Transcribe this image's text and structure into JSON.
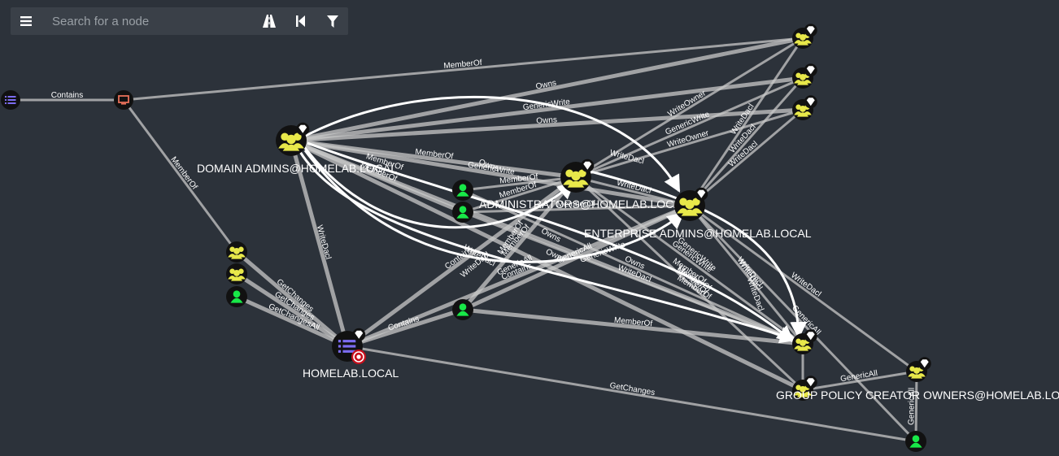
{
  "search": {
    "placeholder": "Search for a node"
  },
  "toolbar": {
    "menu_icon": "hamburger-menu-icon",
    "pathfinding_icon": "road-icon",
    "back_icon": "step-back-icon",
    "filter_icon": "filter-icon"
  },
  "colors": {
    "background": "#2c323a",
    "group": "#e8e84a",
    "user": "#18e848",
    "domain": "#7c6cf0",
    "computer": "#e8705a",
    "edge": "#c8c8c8",
    "target_badge": "#c80f1c"
  },
  "nodes": [
    {
      "id": "ou",
      "type": "ou",
      "icon": "list-icon",
      "label": ""
    },
    {
      "id": "comp",
      "type": "computer",
      "icon": "computer-icon",
      "label": ""
    },
    {
      "id": "domain-admins",
      "type": "group",
      "icon": "group-icon",
      "label": "DOMAIN ADMINS@HOMELAB.LOCAL",
      "highvalue": true,
      "big": true
    },
    {
      "id": "administrators",
      "type": "group",
      "icon": "group-icon",
      "label": "ADMINISTRATORS@HOMELAB.LOCAL",
      "highvalue": true,
      "big": true
    },
    {
      "id": "enterprise-admins",
      "type": "group",
      "icon": "group-icon",
      "label": "ENTERPRISE ADMINS@HOMELAB.LOCAL",
      "highvalue": true,
      "big": true
    },
    {
      "id": "homelab",
      "type": "domain",
      "icon": "domain-icon",
      "label": "HOMELAB.LOCAL",
      "highvalue": true,
      "target": true,
      "big": true
    },
    {
      "id": "gpco",
      "type": "group",
      "icon": "group-icon",
      "label": "GROUP POLICY CREATOR OWNERS@HOMELAB.LOCAL",
      "highvalue": true
    },
    {
      "id": "g1",
      "type": "group",
      "icon": "group-icon",
      "label": "",
      "highvalue": true
    },
    {
      "id": "g2",
      "type": "group",
      "icon": "group-icon",
      "label": "",
      "highvalue": true
    },
    {
      "id": "g3",
      "type": "group",
      "icon": "group-icon",
      "label": "",
      "highvalue": true
    },
    {
      "id": "g4",
      "type": "group",
      "icon": "group-icon",
      "label": "",
      "highvalue": true
    },
    {
      "id": "g5",
      "type": "group",
      "icon": "group-icon",
      "label": "",
      "highvalue": true
    },
    {
      "id": "l1",
      "type": "group",
      "icon": "group-icon",
      "label": ""
    },
    {
      "id": "l2",
      "type": "group",
      "icon": "group-icon",
      "label": ""
    },
    {
      "id": "lu",
      "type": "user",
      "icon": "user-icon",
      "label": ""
    },
    {
      "id": "u1",
      "type": "user",
      "icon": "user-icon",
      "label": ""
    },
    {
      "id": "u2",
      "type": "user",
      "icon": "user-icon",
      "label": ""
    },
    {
      "id": "u3",
      "type": "user",
      "icon": "user-icon",
      "label": ""
    },
    {
      "id": "u4",
      "type": "user",
      "icon": "user-icon",
      "label": ""
    }
  ],
  "edges": [
    {
      "from": "ou",
      "to": "comp",
      "label": "Contains"
    },
    {
      "from": "comp",
      "to": "g1",
      "label": "MemberOf"
    },
    {
      "from": "comp",
      "to": "l1",
      "label": "MemberOf"
    },
    {
      "from": "domain-admins",
      "to": "g1",
      "label": "Owns"
    },
    {
      "from": "domain-admins",
      "to": "g2",
      "label": "GenericWrite"
    },
    {
      "from": "domain-admins",
      "to": "g3",
      "label": "Owns"
    },
    {
      "from": "domain-admins",
      "to": "enterprise-admins",
      "label": "GenericWrite",
      "arc": true
    },
    {
      "from": "domain-admins",
      "to": "administrators",
      "label": "MemberOf"
    },
    {
      "from": "domain-admins",
      "to": "homelab",
      "label": "WriteDacl"
    },
    {
      "from": "domain-admins",
      "to": "u2",
      "label": "MemberOf"
    },
    {
      "from": "domain-admins",
      "to": "g4",
      "label": ""
    },
    {
      "from": "domain-admins",
      "to": "gpco",
      "label": ""
    },
    {
      "from": "administrators",
      "to": "g1",
      "label": "WriteOwner"
    },
    {
      "from": "administrators",
      "to": "g2",
      "label": "GenericWrite"
    },
    {
      "from": "administrators",
      "to": "g3",
      "label": "WriteOwner"
    },
    {
      "from": "administrators",
      "to": "enterprise-admins",
      "label": "WriteDacl"
    },
    {
      "from": "administrators",
      "to": "g4",
      "label": "GenericWrite"
    },
    {
      "from": "administrators",
      "to": "gpco",
      "label": "MemberOf"
    },
    {
      "from": "administrators",
      "to": "homelab",
      "label": "Contains"
    },
    {
      "from": "enterprise-admins",
      "to": "g1",
      "label": "WriteDacl"
    },
    {
      "from": "enterprise-admins",
      "to": "g2",
      "label": "WriteDacl"
    },
    {
      "from": "enterprise-admins",
      "to": "g3",
      "label": "WriteDacl"
    },
    {
      "from": "enterprise-admins",
      "to": "g4",
      "label": "WriteDacl"
    },
    {
      "from": "enterprise-admins",
      "to": "u4",
      "label": "GenericAll"
    },
    {
      "from": "enterprise-admins",
      "to": "homelab",
      "label": "Contains"
    },
    {
      "from": "enterprise-admins",
      "to": "g5",
      "label": "WriteDacl"
    },
    {
      "from": "u1",
      "to": "administrators",
      "label": "MemberOf"
    },
    {
      "from": "u1",
      "to": "g4",
      "label": "Owns"
    },
    {
      "from": "u2",
      "to": "administrators",
      "label": "MemberOf"
    },
    {
      "from": "u2",
      "to": "enterprise-admins",
      "label": "MemberOf"
    },
    {
      "from": "u2",
      "to": "g4",
      "label": "WriteDacl"
    },
    {
      "from": "u3",
      "to": "g4",
      "label": "MemberOf"
    },
    {
      "from": "u3",
      "to": "administrators",
      "label": "MemberOf"
    },
    {
      "from": "u3",
      "to": "enterprise-admins",
      "label": "GenericAll"
    },
    {
      "from": "u3",
      "to": "homelab",
      "label": "Contains"
    },
    {
      "from": "l1",
      "to": "homelab",
      "label": "GetChanges"
    },
    {
      "from": "l2",
      "to": "homelab",
      "label": "GetChanges"
    },
    {
      "from": "lu",
      "to": "homelab",
      "label": "GetChangesAll"
    },
    {
      "from": "homelab",
      "to": "u4",
      "label": "GetChanges"
    },
    {
      "from": "g5",
      "to": "gpco",
      "label": "GenericAll"
    },
    {
      "from": "g5",
      "to": "u4",
      "label": "GenericAll"
    },
    {
      "from": "g4",
      "to": "gpco",
      "label": ""
    }
  ],
  "extra_labels": [
    "Owns",
    "Owns",
    "WriteDacl",
    "WriteDacl",
    "GenericAll",
    "GenericWrite",
    "MemberOf",
    "MemberOf",
    "MemberOf",
    "Owns",
    "WriteDacl",
    "WriteDacl",
    "MemberOf",
    "WriteDacl",
    "GenericWrite",
    "MemberOf"
  ]
}
